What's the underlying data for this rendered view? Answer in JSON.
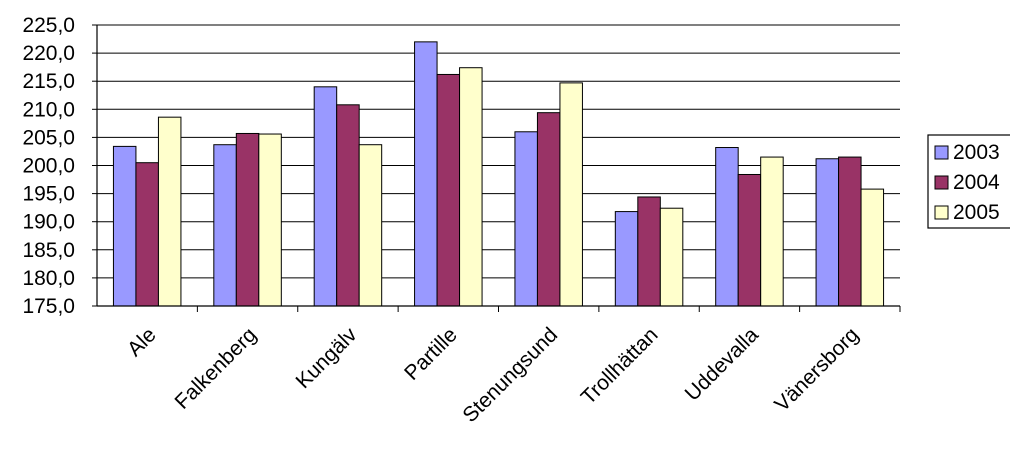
{
  "chart_data": {
    "type": "bar",
    "title": "",
    "xlabel": "",
    "ylabel": "",
    "categories": [
      "Ale",
      "Falkenberg",
      "Kungälv",
      "Partille",
      "Stenungsund",
      "Trollhättan",
      "Uddevalla",
      "Vänersborg"
    ],
    "series": [
      {
        "name": "2003",
        "color": "#9999ff",
        "values": [
          203.4,
          203.7,
          214.0,
          222.0,
          206.0,
          191.8,
          203.2,
          201.2
        ]
      },
      {
        "name": "2004",
        "color": "#993366",
        "values": [
          200.5,
          205.7,
          210.8,
          216.2,
          209.4,
          194.4,
          198.4,
          201.5
        ]
      },
      {
        "name": "2005",
        "color": "#ffffcc",
        "values": [
          208.6,
          205.6,
          203.7,
          217.4,
          214.7,
          192.4,
          201.5,
          195.8
        ]
      }
    ],
    "yticks": [
      "175,0",
      "180,0",
      "185,0",
      "190,0",
      "195,0",
      "200,0",
      "205,0",
      "210,0",
      "215,0",
      "220,0",
      "225,0"
    ],
    "ylim": [
      175,
      225
    ],
    "ystep": 5,
    "grid": true,
    "legend": "right"
  }
}
